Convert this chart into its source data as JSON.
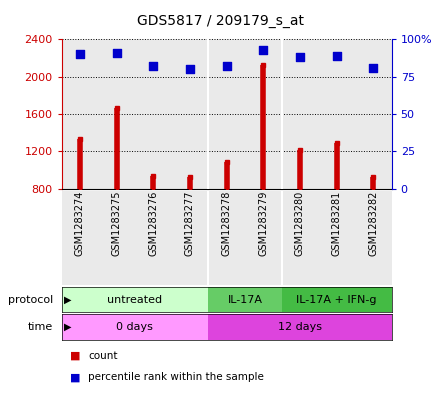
{
  "title": "GDS5817 / 209179_s_at",
  "samples": [
    "GSM1283274",
    "GSM1283275",
    "GSM1283276",
    "GSM1283277",
    "GSM1283278",
    "GSM1283279",
    "GSM1283280",
    "GSM1283281",
    "GSM1283282"
  ],
  "counts": [
    1330,
    1660,
    940,
    920,
    1090,
    2130,
    1210,
    1290,
    920
  ],
  "percentile_ranks": [
    90,
    91,
    82,
    80,
    82,
    93,
    88,
    89,
    81
  ],
  "ylim_left": [
    800,
    2400
  ],
  "ylim_right": [
    0,
    100
  ],
  "yticks_left": [
    800,
    1200,
    1600,
    2000,
    2400
  ],
  "yticks_right": [
    0,
    25,
    50,
    75,
    100
  ],
  "bar_color": "#cc0000",
  "dot_color": "#0000cc",
  "protocol_groups": [
    {
      "label": "untreated",
      "start": 0,
      "end": 4,
      "color": "#ccffcc"
    },
    {
      "label": "IL-17A",
      "start": 4,
      "end": 6,
      "color": "#66cc66"
    },
    {
      "label": "IL-17A + IFN-g",
      "start": 6,
      "end": 9,
      "color": "#44bb44"
    }
  ],
  "time_groups": [
    {
      "label": "0 days",
      "start": 0,
      "end": 4,
      "color": "#ff99ff"
    },
    {
      "label": "12 days",
      "start": 4,
      "end": 9,
      "color": "#dd44dd"
    }
  ],
  "protocol_label": "protocol",
  "time_label": "time",
  "legend_count_label": "count",
  "legend_percentile_label": "percentile rank within the sample",
  "sample_bg_color": "#cccccc",
  "fig_width": 4.4,
  "fig_height": 3.93,
  "dpi": 100
}
